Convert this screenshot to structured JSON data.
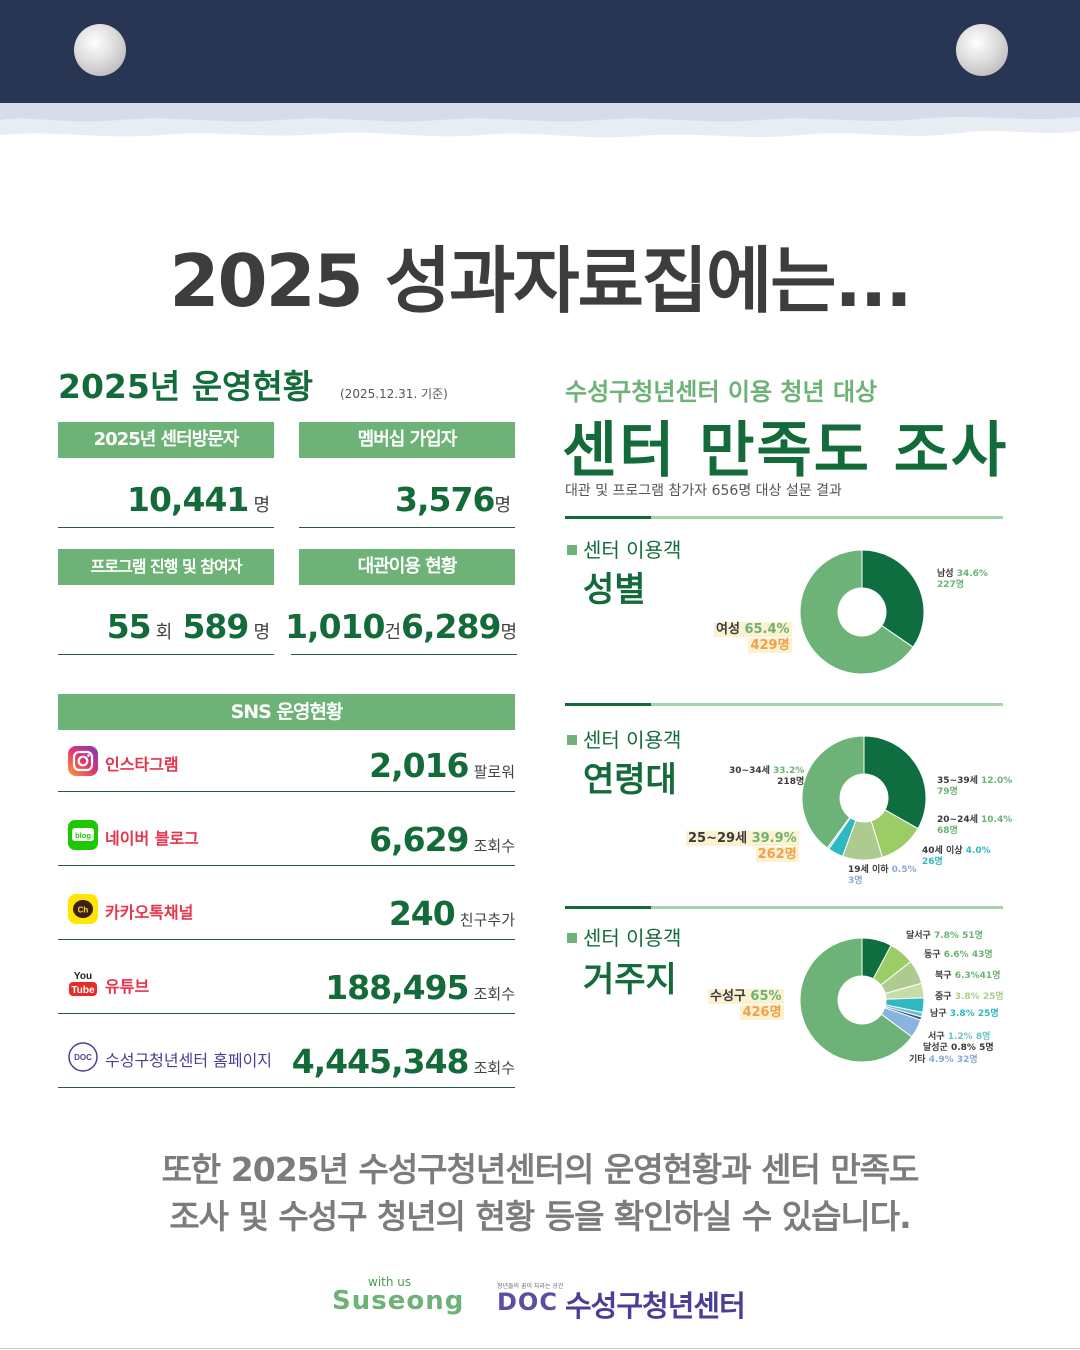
{
  "headline": "2025 성과자료집에는...",
  "operations": {
    "title": "2025년 운영현황",
    "note": "(2025.12.31. 기준)",
    "visitors": {
      "label": "2025년 센터방문자",
      "value": "10,441",
      "unit": "명"
    },
    "members": {
      "label": "멤버십 가입자",
      "value": "3,576",
      "unit": "명"
    },
    "programs": {
      "label": "프로그램 진행 및 참여자",
      "count": "55",
      "count_unit": "회",
      "people": "589",
      "people_unit": "명"
    },
    "rental": {
      "label": "대관이용 현황",
      "count": "1,010",
      "count_unit": "건",
      "people": "6,289",
      "people_unit": "명"
    }
  },
  "sns": {
    "title": "SNS 운영현황",
    "items": [
      {
        "name": "인스타그램",
        "value": "2,016",
        "unit": "팔로워",
        "icon": "instagram-icon"
      },
      {
        "name": "네이버 블로그",
        "value": "6,629",
        "unit": "조회수",
        "icon": "naver-blog-icon"
      },
      {
        "name": "카카오톡채널",
        "value": "240",
        "unit": "친구추가",
        "icon": "kakaotalk-channel-icon"
      },
      {
        "name": "유튜브",
        "value": "188,495",
        "unit": "조회수",
        "icon": "youtube-icon"
      },
      {
        "name": "수성구청년센터 홈페이지",
        "value": "4,445,348",
        "unit": "조회수",
        "icon": "doc-logo-icon"
      }
    ],
    "youtube_icon_text": {
      "top": "You",
      "bottom": "Tube"
    },
    "blog_icon_text": "blog",
    "kakao_icon_text": "Ch",
    "doc_icon_text": "DOC"
  },
  "survey": {
    "subtitle": "수성구청년센터 이용 청년 대상",
    "title": "센터 만족도 조사",
    "note": "대관 및 프로그램 참가자 656명 대상 설문 결과",
    "category_prefix": "센터 이용객",
    "gender": {
      "title": "성별",
      "slices": [
        {
          "name": "남성",
          "percent": "34.6%",
          "count": "227명",
          "value": 34.6,
          "color": "#0f6e3f"
        },
        {
          "name": "여성",
          "percent": "65.4%",
          "count": "429명",
          "value": 65.4,
          "color": "#6db276"
        }
      ]
    },
    "age": {
      "title": "연령대",
      "slices": [
        {
          "name": "30~34세",
          "percent": "33.2%",
          "count": "218명",
          "value": 33.2,
          "color": "#0f6e3f"
        },
        {
          "name": "35~39세",
          "percent": "12.0%",
          "count": "79명",
          "value": 12.0,
          "color": "#9ccc65"
        },
        {
          "name": "20~24세",
          "percent": "10.4%",
          "count": "68명",
          "value": 10.4,
          "color": "#aecb8f"
        },
        {
          "name": "40세 이상",
          "percent": "4.0%",
          "count": "26명",
          "value": 4.0,
          "color": "#2fb8c0"
        },
        {
          "name": "19세 이하",
          "percent": "0.5%",
          "count": "3명",
          "value": 0.5,
          "color": "#8ec6e8"
        },
        {
          "name": "25~29세",
          "percent": "39.9%",
          "count": "262명",
          "value": 39.9,
          "color": "#6db276"
        }
      ]
    },
    "residence": {
      "title": "거주지",
      "slices": [
        {
          "name": "달서구",
          "percent": "7.8%",
          "count": "51명",
          "value": 7.8,
          "color": "#0f6e3f"
        },
        {
          "name": "동구",
          "percent": "6.6%",
          "count": "43명",
          "value": 6.6,
          "color": "#9ccc65"
        },
        {
          "name": "북구",
          "percent": "6.3%",
          "count": "41명",
          "value": 6.3,
          "color": "#aecb8f"
        },
        {
          "name": "중구",
          "percent": "3.8%",
          "count": "25명",
          "value": 3.8,
          "color": "#c8dca8"
        },
        {
          "name": "남구",
          "percent": "3.8%",
          "count": "25명",
          "value": 3.8,
          "color": "#2fb8c0"
        },
        {
          "name": "서구",
          "percent": "1.2%",
          "count": "8명",
          "value": 1.2,
          "color": "#6fc3c9"
        },
        {
          "name": "달성군",
          "percent": "0.8%",
          "count": "5명",
          "value": 0.8,
          "color": "#3b4a8c"
        },
        {
          "name": "기타",
          "percent": "4.9%",
          "count": "32명",
          "value": 4.9,
          "color": "#8ab4e0"
        },
        {
          "name": "수성구",
          "percent": "65%",
          "count": "426명",
          "value": 65.0,
          "color": "#6db276"
        }
      ]
    }
  },
  "bottom": {
    "line1": "또한 2025년 수성구청년센터의 운영현황과 센터 만족도",
    "line2": "조사 및 수성구 청년의 현황 등을 확인하실 수 있습니다."
  },
  "logos": {
    "with_us": "with us",
    "suseong": "Suseong",
    "doc": "DOC",
    "tagline": "청년들의 꿈이 자라는 공간",
    "center": "수성구청년센터"
  },
  "colors": {
    "navy": "#283654",
    "dark_green": "#146b3a",
    "green": "#6db276",
    "light_green": "#a6d4a8"
  }
}
